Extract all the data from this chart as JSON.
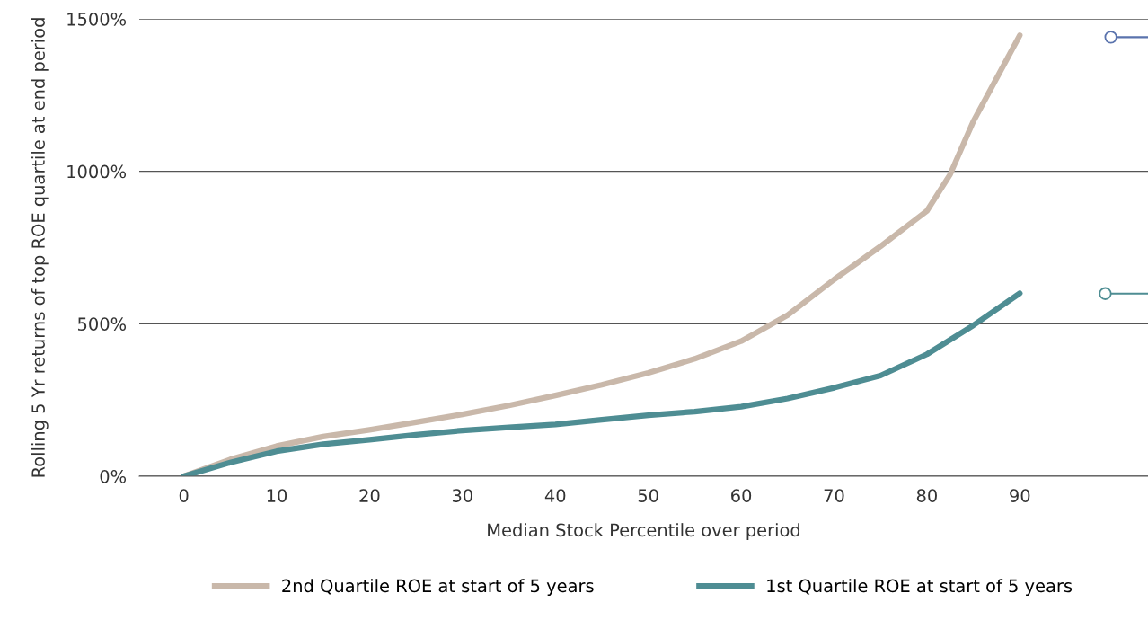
{
  "chart_data": {
    "type": "line",
    "xlabel": "Median Stock Percentile over period",
    "ylabel": "Rolling 5 Yr returns of top ROE quartile at end period",
    "xlim": [
      -4.8,
      103.8
    ],
    "xticks": [
      0,
      10,
      20,
      30,
      40,
      50,
      60,
      70,
      80,
      90
    ],
    "ylim": [
      0,
      1500
    ],
    "yticks": [
      {
        "value": 0,
        "label": "0%"
      },
      {
        "value": 500,
        "label": "500%"
      },
      {
        "value": 1000,
        "label": "1000%"
      },
      {
        "value": 1500,
        "label": "1500%"
      }
    ],
    "grid": "y",
    "legend": "bottom",
    "line_style": "solid",
    "series": [
      {
        "name": "2nd Quartile ROE at start of 5 years",
        "color": "#c9b8aa",
        "x": [
          0,
          5,
          10,
          15,
          20,
          25,
          30,
          35,
          40,
          45,
          50,
          55,
          60,
          65,
          70,
          75,
          80,
          82.5,
          85,
          90
        ],
        "values": [
          0,
          55,
          99,
          130,
          152,
          177,
          203,
          232,
          265,
          300,
          339,
          385,
          443,
          528,
          645,
          754,
          870,
          990,
          1164,
          1446
        ]
      },
      {
        "name": "1st Quartile ROE at start of 5 years",
        "color": "#4e8d93",
        "x": [
          0,
          5,
          10,
          15,
          20,
          25,
          30,
          35,
          40,
          45,
          50,
          55,
          60,
          65,
          70,
          75,
          80,
          85,
          90
        ],
        "values": [
          0,
          45,
          82,
          105,
          120,
          136,
          150,
          160,
          170,
          185,
          200,
          212,
          228,
          255,
          290,
          330,
          400,
          495,
          600
        ]
      },
      {
        "type": "line",
        "marker": "circle",
        "color": "#5a73ad",
        "x": [
          99.8,
          103.8
        ],
        "values": [
          1440,
          1440
        ]
      },
      {
        "type": "line",
        "marker": "circle",
        "color": "#4e8d93",
        "x": [
          99.2,
          103.8
        ],
        "values": [
          599,
          599
        ]
      }
    ]
  }
}
